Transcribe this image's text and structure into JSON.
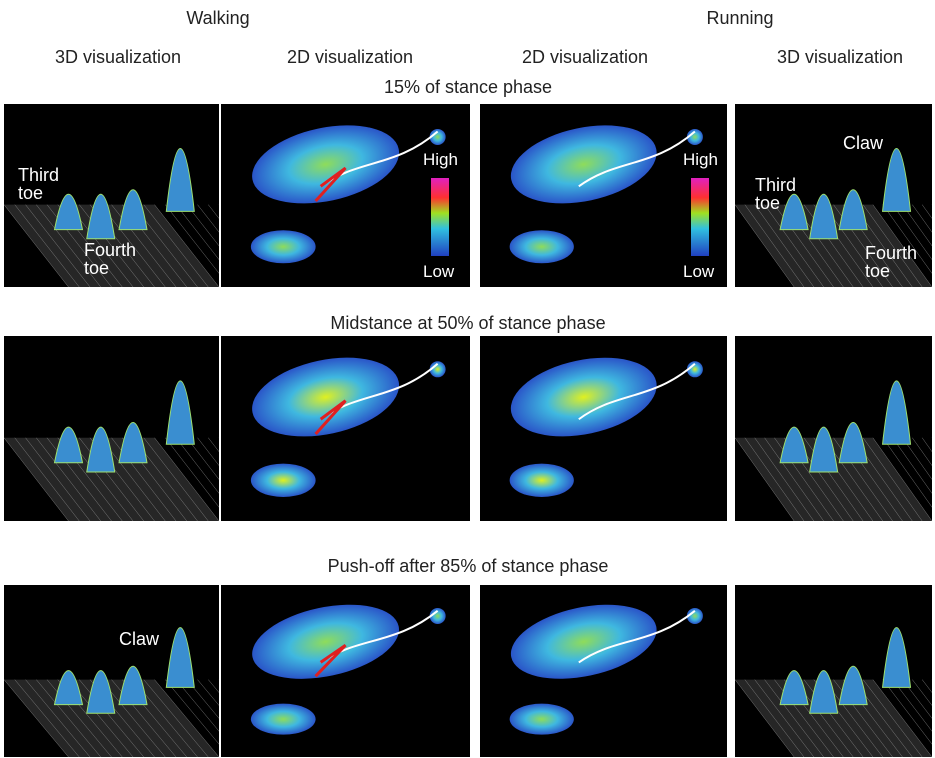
{
  "header": {
    "groups": [
      "Walking",
      "Running"
    ],
    "columns": [
      "3D visualization",
      "2D visualization",
      "2D visualization",
      "3D visualization"
    ]
  },
  "rows": [
    {
      "title": "15% of stance phase",
      "panels": [
        {
          "labels": [
            "Third toe",
            "Fourth toe"
          ]
        },
        {
          "legend": [
            "High",
            "Low"
          ]
        },
        {
          "legend": [
            "High",
            "Low"
          ]
        },
        {
          "labels": [
            "Claw",
            "Third toe",
            "Fourth toe"
          ]
        }
      ]
    },
    {
      "title": "Midstance at 50% of stance phase",
      "panels": [
        {},
        {},
        {},
        {}
      ]
    },
    {
      "title": "Push-off after 85% of stance phase",
      "panels": [
        {
          "labels": [
            "Claw"
          ]
        },
        {},
        {},
        {}
      ]
    }
  ]
}
